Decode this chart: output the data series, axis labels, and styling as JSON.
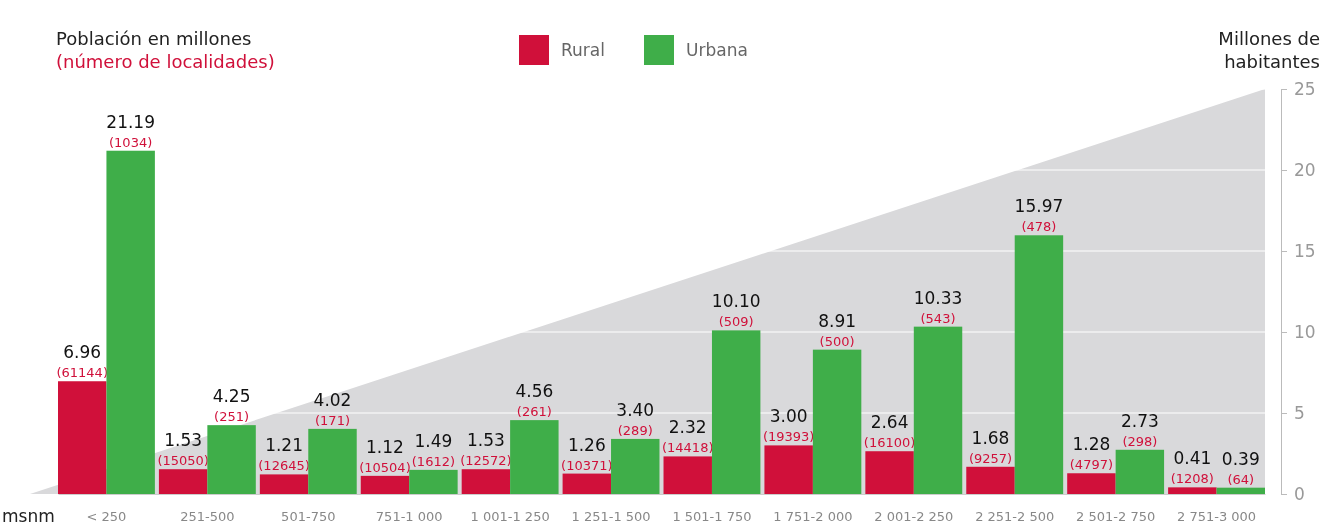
{
  "chart_data": {
    "type": "bar",
    "title": "Población en millones",
    "subtitle": "(número de localidades)",
    "ylabel": "Millones de habitantes",
    "xlabel": "msnm",
    "categories": [
      "< 250",
      "251-500",
      "501-750",
      "751-1 000",
      "1 001-1 250",
      "1 251-1 500",
      "1 501-1 750",
      "1 751-2 000",
      "2 001-2 250",
      "2 251-2 500",
      "2 501-2 750",
      "2 751-3 000"
    ],
    "series": [
      {
        "name": "Rural",
        "color": "#d0103a",
        "values": [
          6.96,
          1.53,
          1.21,
          1.12,
          1.53,
          1.26,
          2.32,
          3.0,
          2.64,
          1.68,
          1.28,
          0.41
        ],
        "value_labels": [
          "6.96\n(61144)",
          "1.53\n(15050)",
          "1.21\n(12645)",
          "1.12\n(10504)",
          "1.53\n(12572)",
          "1.26\n(10371)",
          "2.32\n(14418)",
          "3.00\n(19393)",
          "2.64\n(16100)",
          "1.68\n(9257)",
          "1.28\n(4797)",
          "0.41\n(1208)"
        ]
      },
      {
        "name": "Urbana",
        "color": "#3fae49",
        "values": [
          21.19,
          4.25,
          4.02,
          1.49,
          4.56,
          3.4,
          10.1,
          8.91,
          10.33,
          15.97,
          2.73,
          0.39
        ],
        "value_labels": [
          "21.19\n(1034)",
          "4.25\n(251)",
          "4.02\n(171)",
          "1.49\n(1612)",
          "4.56\n(261)",
          "3.40\n(289)",
          "10.10\n(509)",
          "8.91\n(500)",
          "10.33\n(543)",
          "15.97\n(478)",
          "2.73\n(298)",
          "0.39\n(64)"
        ]
      }
    ],
    "ylim": [
      0,
      25
    ],
    "yticks": [
      0,
      5,
      10,
      15,
      20,
      25
    ],
    "grid": "y",
    "legend": "top"
  }
}
